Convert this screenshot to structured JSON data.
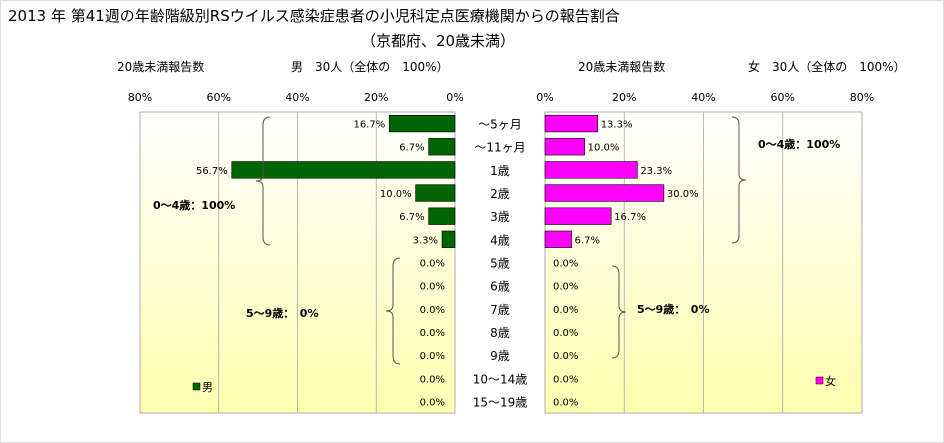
{
  "title": "2013 年 第41週の年齢階級別RSウイルス感染症患者の小児科定点医療機関からの報告割合",
  "subtitle": "（京都府、20歳未満）",
  "colors": {
    "male": "#006400",
    "female": "#ff00ff",
    "panel_top": "#ffffff",
    "panel_bottom": "#ffffb0"
  },
  "chart_data": [
    {
      "type": "bar",
      "orientation": "horizontal",
      "direction": "right-to-left",
      "xlabel": "20歳未満報告数",
      "summary": "男　30人（全体の　100%）",
      "xlim": [
        0,
        80
      ],
      "x_ticks": [
        "0%",
        "20%",
        "40%",
        "60%",
        "80%"
      ],
      "categories": [
        "～5ヶ月",
        "～11ヶ月",
        "1歳",
        "2歳",
        "3歳",
        "4歳",
        "5歳",
        "6歳",
        "7歳",
        "8歳",
        "9歳",
        "10～14歳",
        "15～19歳"
      ],
      "series": [
        {
          "name": "男",
          "values": [
            16.7,
            6.7,
            56.7,
            10.0,
            6.7,
            3.3,
            0,
            0,
            0,
            0,
            0,
            0,
            0
          ],
          "labels": [
            "16.7%",
            "6.7%",
            "56.7%",
            "10.0%",
            "6.7%",
            "3.3%",
            "0.0%",
            "0.0%",
            "0.0%",
            "0.0%",
            "0.0%",
            "0.0%",
            "0.0%"
          ]
        }
      ],
      "annotations": [
        "0～4歳：100%",
        "5～9歳：　0%"
      ],
      "legend": "bottom-left"
    },
    {
      "type": "bar",
      "orientation": "horizontal",
      "direction": "left-to-right",
      "xlabel": "20歳未満報告数",
      "summary": "女　30人（全体の　100%）",
      "xlim": [
        0,
        80
      ],
      "x_ticks": [
        "0%",
        "20%",
        "40%",
        "60%",
        "80%"
      ],
      "categories": [
        "～5ヶ月",
        "～11ヶ月",
        "1歳",
        "2歳",
        "3歳",
        "4歳",
        "5歳",
        "6歳",
        "7歳",
        "8歳",
        "9歳",
        "10～14歳",
        "15～19歳"
      ],
      "series": [
        {
          "name": "女",
          "values": [
            13.3,
            10.0,
            23.3,
            30.0,
            16.7,
            6.7,
            0,
            0,
            0,
            0,
            0,
            0,
            0
          ],
          "labels": [
            "13.3%",
            "10.0%",
            "23.3%",
            "30.0%",
            "16.7%",
            "6.7%",
            "0.0%",
            "0.0%",
            "0.0%",
            "0.0%",
            "0.0%",
            "0.0%",
            "0.0%"
          ]
        }
      ],
      "annotations": [
        "0～4歳：100%",
        "5～9歳：　0%"
      ],
      "legend": "bottom-right"
    }
  ]
}
